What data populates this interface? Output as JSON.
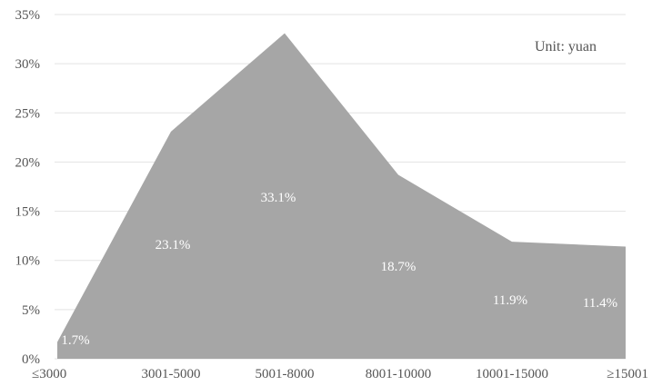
{
  "chart_data": {
    "type": "area",
    "categories": [
      "≤3000",
      "3001-5000",
      "5001-8000",
      "8001-10000",
      "10001-15000",
      "≥15001"
    ],
    "values": [
      1.7,
      23.1,
      33.1,
      18.7,
      11.9,
      11.4
    ],
    "data_labels": [
      "1.7%",
      "23.1%",
      "33.1%",
      "18.7%",
      "11.9%",
      "11.4%"
    ],
    "y_ticks": [
      "0%",
      "5%",
      "10%",
      "15%",
      "20%",
      "25%",
      "30%",
      "35%"
    ],
    "ylim": [
      0,
      35
    ],
    "unit_note": "Unit: yuan",
    "fill_color": "#a6a6a6",
    "grid": true,
    "legend": false
  }
}
